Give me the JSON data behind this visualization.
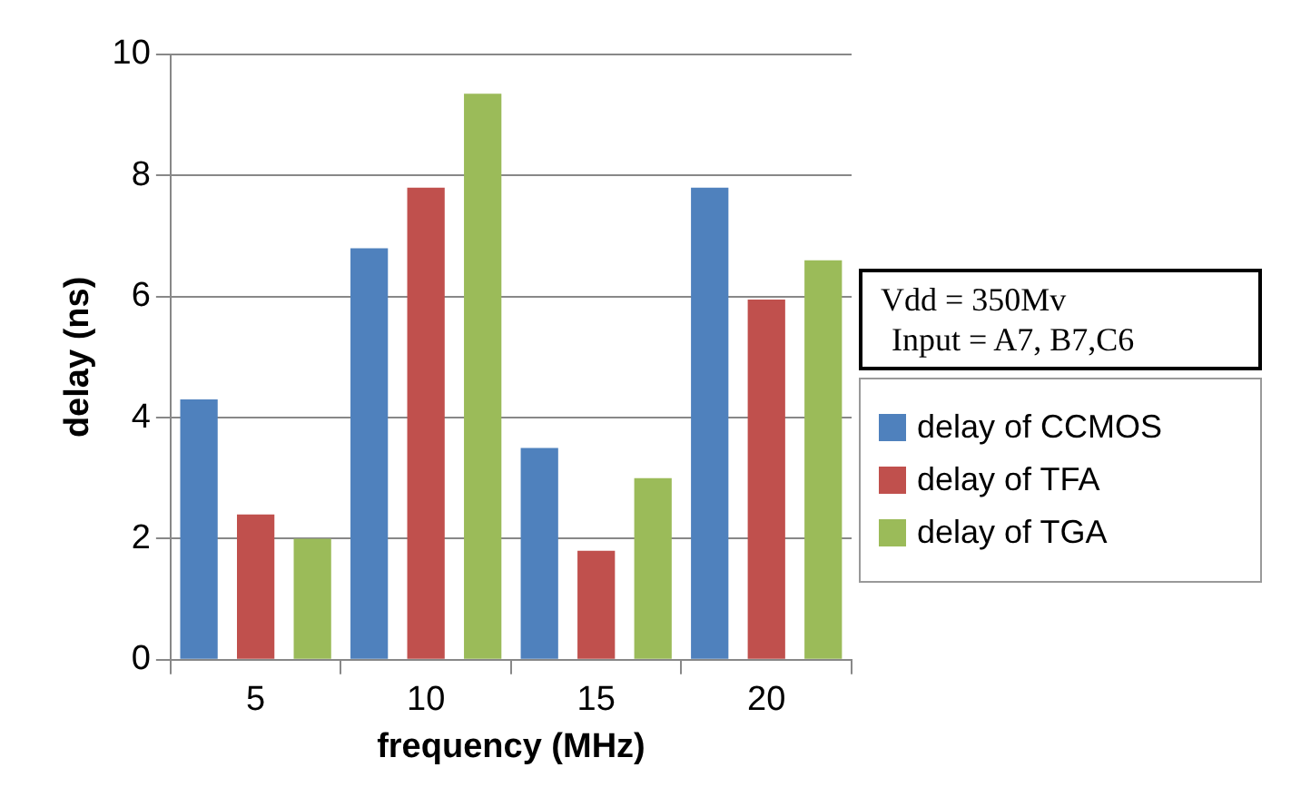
{
  "chart_data": {
    "type": "bar",
    "xlabel": "frequency (MHz)",
    "ylabel": "delay (ns)",
    "categories": [
      "5",
      "10",
      "15",
      "20"
    ],
    "series": [
      {
        "name": "delay of CCMOS",
        "color": "#4f81bd",
        "values": [
          4.3,
          6.8,
          3.5,
          7.8
        ]
      },
      {
        "name": "delay of TFA",
        "color": "#c0504d",
        "values": [
          2.4,
          7.8,
          1.8,
          5.95
        ]
      },
      {
        "name": "delay of TGA",
        "color": "#9bbb59",
        "values": [
          2.0,
          9.35,
          3.0,
          6.6
        ]
      }
    ],
    "ylim": [
      0,
      10
    ],
    "yticks": [
      0,
      2,
      4,
      6,
      8,
      10
    ],
    "grid": "y",
    "legend": "right",
    "annotations": [
      "Vdd = 350Mv",
      "Input = A7, B7,C6"
    ]
  }
}
